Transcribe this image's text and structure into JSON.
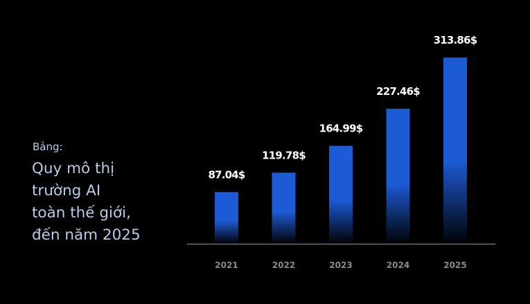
{
  "caption": "Bảng:",
  "title_lines": [
    "Quy mô thị",
    "trường AI",
    "toàn thế giới,",
    "đến năm 2025"
  ],
  "colors": {
    "bar": "#1d5bd6",
    "text_title": "#b9cce6",
    "axis": "#9a9a9a",
    "background": "#000000"
  },
  "chart_data": {
    "type": "bar",
    "categories": [
      "2021",
      "2022",
      "2023",
      "2024",
      "2025"
    ],
    "values": [
      87.04,
      119.78,
      164.99,
      227.46,
      313.86
    ],
    "data_labels": [
      "87.04$",
      "119.78$",
      "164.99$",
      "227.46$",
      "313.86$"
    ],
    "title": "",
    "xlabel": "",
    "ylabel": "",
    "grid": false,
    "legend": "none"
  }
}
